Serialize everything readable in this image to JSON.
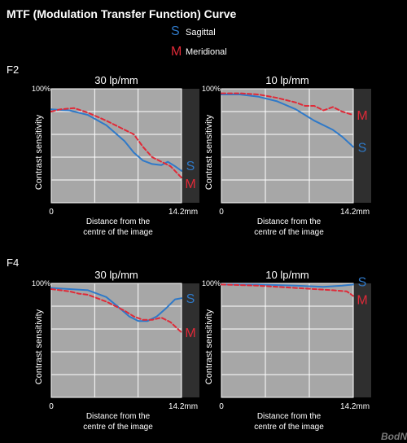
{
  "title": "MTF (Modulation Transfer Function) Curve",
  "legend": [
    {
      "symbol": "S",
      "label": "Sagittal",
      "color": "#2f79c8"
    },
    {
      "symbol": "M",
      "label": "Meridional",
      "color": "#e02a38"
    }
  ],
  "watermark": "BodNara",
  "colors": {
    "background": "#000000",
    "plot_bg": "#a7a7a7",
    "grid": "#ffffff",
    "strip": "#2f2f2f",
    "sagittal": "#2f79c8",
    "meridional": "#e02a38"
  },
  "chart_data": [
    {
      "type": "line",
      "group": "F2",
      "title": "30 lp/mm",
      "xlabel": "Distance from the centre of the image",
      "ylabel": "Contrast sensitivity",
      "xlim": [
        0,
        14.2
      ],
      "ylim": [
        0,
        100
      ],
      "x_tick_labels": [
        "0",
        "14.2mm"
      ],
      "y_tick_label": "100%",
      "series_labels": [
        "S",
        "M"
      ],
      "series": [
        {
          "name": "S",
          "style": "solid",
          "x": [
            0,
            2,
            4,
            6,
            8,
            9,
            10,
            11,
            12,
            12.7,
            13.5,
            14.2
          ],
          "y": [
            82,
            81,
            77,
            68,
            54,
            44,
            37,
            34,
            33,
            36,
            32,
            28
          ]
        },
        {
          "name": "M",
          "style": "dashed",
          "x": [
            0,
            1,
            2.5,
            4,
            6,
            7.5,
            9,
            10,
            11,
            12,
            13,
            14.2
          ],
          "y": [
            80,
            82,
            83,
            79,
            72,
            66,
            60,
            49,
            40,
            36,
            32,
            22
          ]
        }
      ]
    },
    {
      "type": "line",
      "group": "F2",
      "title": "10 lp/mm",
      "xlabel": "Distance from the centre of the image",
      "ylabel": "Contrast sensitivity",
      "xlim": [
        0,
        14.2
      ],
      "ylim": [
        0,
        100
      ],
      "x_tick_labels": [
        "0",
        "14.2mm"
      ],
      "y_tick_label": "100%",
      "series_labels": [
        "M",
        "S"
      ],
      "series": [
        {
          "name": "S",
          "style": "solid",
          "x": [
            0,
            2,
            4,
            6,
            8,
            10,
            12,
            13,
            14.2
          ],
          "y": [
            95,
            95,
            93,
            89,
            82,
            72,
            64,
            58,
            49
          ]
        },
        {
          "name": "M",
          "style": "dashed",
          "x": [
            0,
            2,
            4,
            6,
            8,
            9,
            10,
            11,
            12,
            13,
            14.2
          ],
          "y": [
            96,
            96,
            95,
            92,
            88,
            85,
            85,
            81,
            84,
            80,
            77
          ]
        }
      ]
    },
    {
      "type": "line",
      "group": "F4",
      "title": "30 lp/mm",
      "xlabel": "Distance from the centre of the image",
      "ylabel": "Contrast sensitivity",
      "xlim": [
        0,
        14.2
      ],
      "ylim": [
        0,
        100
      ],
      "x_tick_labels": [
        "0",
        "14.2mm"
      ],
      "y_tick_label": "100%",
      "series_labels": [
        "S",
        "M"
      ],
      "series": [
        {
          "name": "S",
          "style": "solid",
          "x": [
            0,
            2,
            4,
            6,
            7.5,
            8.5,
            9.5,
            10.5,
            11.5,
            12.5,
            13.5,
            14.2
          ],
          "y": [
            96,
            95,
            94,
            88,
            78,
            71,
            67,
            67,
            71,
            78,
            86,
            87
          ]
        },
        {
          "name": "M",
          "style": "dashed",
          "x": [
            0,
            2,
            3,
            4,
            5,
            6,
            7,
            8,
            9,
            10,
            11,
            12,
            13,
            14.2
          ],
          "y": [
            95,
            93,
            91,
            90,
            87,
            84,
            80,
            76,
            71,
            68,
            68,
            70,
            66,
            57
          ]
        }
      ]
    },
    {
      "type": "line",
      "group": "F4",
      "title": "10 lp/mm",
      "xlabel": "Distance from the centre of the image",
      "ylabel": "Contrast sensitivity",
      "xlim": [
        0,
        14.2
      ],
      "ylim": [
        0,
        100
      ],
      "x_tick_labels": [
        "0",
        "14.2mm"
      ],
      "y_tick_label": "100%",
      "series_labels": [
        "S",
        "M"
      ],
      "series": [
        {
          "name": "S",
          "style": "solid",
          "x": [
            0,
            4,
            8,
            11,
            13,
            14.2
          ],
          "y": [
            99,
            99,
            98,
            97,
            98,
            99
          ]
        },
        {
          "name": "M",
          "style": "dashed",
          "x": [
            0,
            4,
            8,
            10,
            12,
            13.5,
            14.2
          ],
          "y": [
            99,
            98,
            96,
            95,
            94,
            93,
            89
          ]
        }
      ]
    }
  ],
  "groups": [
    "F2",
    "F4"
  ]
}
